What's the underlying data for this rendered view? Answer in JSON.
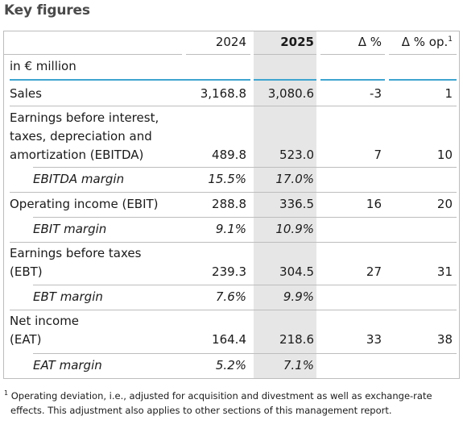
{
  "title": "Key figures",
  "header": {
    "col_2024": "2024",
    "col_2025": "2025",
    "col_delta": "Δ %",
    "col_delta_op": "Δ % op.",
    "col_delta_op_sup": "1"
  },
  "unit": "in € million",
  "rows": [
    {
      "label": "Sales",
      "v2024": "3,168.8",
      "v2025": "3,080.6",
      "delta": "-3",
      "delta_op": "1"
    },
    {
      "label": "Earnings before interest,\ntaxes, depreciation and\namortization (EBITDA)",
      "v2024": "489.8",
      "v2025": "523.0",
      "delta": "7",
      "delta_op": "10"
    },
    {
      "label": "EBITDA margin",
      "v2024": "15.5%",
      "v2025": "17.0%",
      "delta": "",
      "delta_op": ""
    },
    {
      "label": "Operating income (EBIT)",
      "v2024": "288.8",
      "v2025": "336.5",
      "delta": "16",
      "delta_op": "20"
    },
    {
      "label": "EBIT margin",
      "v2024": "9.1%",
      "v2025": "10.9%",
      "delta": "",
      "delta_op": ""
    },
    {
      "label": "Earnings before taxes\n(EBT)",
      "v2024": "239.3",
      "v2025": "304.5",
      "delta": "27",
      "delta_op": "31"
    },
    {
      "label": "EBT margin",
      "v2024": "7.6%",
      "v2025": "9.9%",
      "delta": "",
      "delta_op": ""
    },
    {
      "label": "Net income\n(EAT)",
      "v2024": "164.4",
      "v2025": "218.6",
      "delta": "33",
      "delta_op": "38"
    },
    {
      "label": "EAT margin",
      "v2024": "5.2%",
      "v2025": "7.1%",
      "delta": "",
      "delta_op": ""
    }
  ],
  "footnote": {
    "marker": "1",
    "line1": "Operating deviation, i.e., adjusted for acquisition and divestment as well as exchange-rate",
    "line2": "effects. This adjustment also applies to other sections of this management report."
  },
  "colors": {
    "accent_rule": "#3fa5d0",
    "highlight_column": "#e6e6e6",
    "rule": "#bdbdbd"
  }
}
